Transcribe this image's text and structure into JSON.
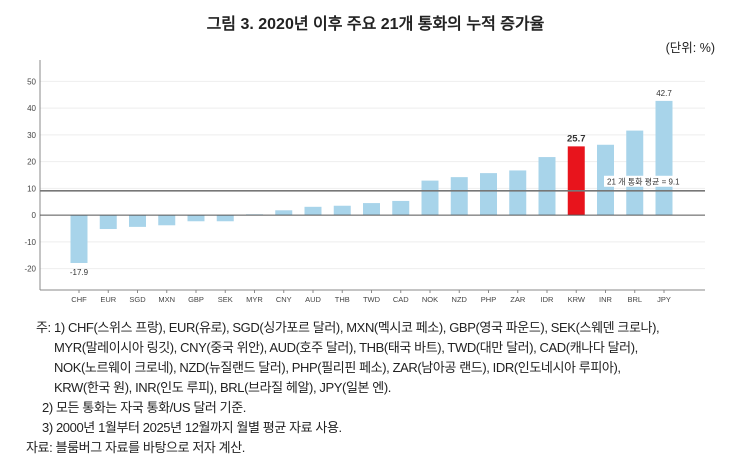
{
  "chart_data": {
    "type": "bar",
    "title": "그림 3. 2020년 이후 주요 21개 통화의 누적 증가율",
    "unit_label": "(단위: %)",
    "xlabel": "",
    "ylabel": "",
    "categories": [
      "CHF",
      "EUR",
      "SGD",
      "MXN",
      "GBP",
      "SEK",
      "MYR",
      "CNY",
      "AUD",
      "THB",
      "TWD",
      "CAD",
      "NOK",
      "NZD",
      "PHP",
      "ZAR",
      "IDR",
      "KRW",
      "INR",
      "BRL",
      "JPY"
    ],
    "values": [
      -17.9,
      -5.2,
      -4.4,
      -3.8,
      -2.3,
      -2.3,
      0.3,
      1.8,
      3.1,
      3.5,
      4.5,
      5.3,
      12.9,
      14.2,
      15.7,
      16.7,
      21.7,
      25.7,
      26.3,
      31.6,
      42.7
    ],
    "ylim": [
      -28,
      55
    ],
    "yticks": [
      -20,
      -10,
      0,
      10,
      20,
      30,
      40,
      50
    ],
    "grid": true,
    "highlight": {
      "category": "KRW",
      "color": "#e8141c"
    },
    "bar_color": "#a8d4ea",
    "data_labels": [
      {
        "category": "CHF",
        "text": "-17.9"
      },
      {
        "category": "KRW",
        "text": "25.7"
      },
      {
        "category": "JPY",
        "text": "42.7"
      }
    ],
    "reference_line": {
      "value": 9.1,
      "label": "21 개 통화 평균 = 9.1"
    }
  },
  "notes": {
    "lines": [
      "주: 1) CHF(스위스 프랑), EUR(유로), SGD(싱가포르 달러), MXN(멕시코 페소), GBP(영국 파운드), SEK(스웨덴 크로나),",
      "MYR(말레이시아 링깃), CNY(중국 위안), AUD(호주 달러), THB(태국 바트), TWD(대만 달러), CAD(캐나다 달러),",
      "NOK(노르웨이 크로네), NZD(뉴질랜드 달러), PHP(필리핀 페소), ZAR(남아공 랜드), IDR(인도네시아 루피아),",
      "KRW(한국 원), INR(인도 루피), BRL(브라질 헤알), JPY(일본 엔).",
      "2) 모든 통화는 자국 통화/US 달러 기준.",
      "3) 2000년 1월부터 2025년 12월까지 월별 평균 자료 사용."
    ],
    "source": "자료: 블룸버그 자료를 바탕으로 저자 계산."
  }
}
